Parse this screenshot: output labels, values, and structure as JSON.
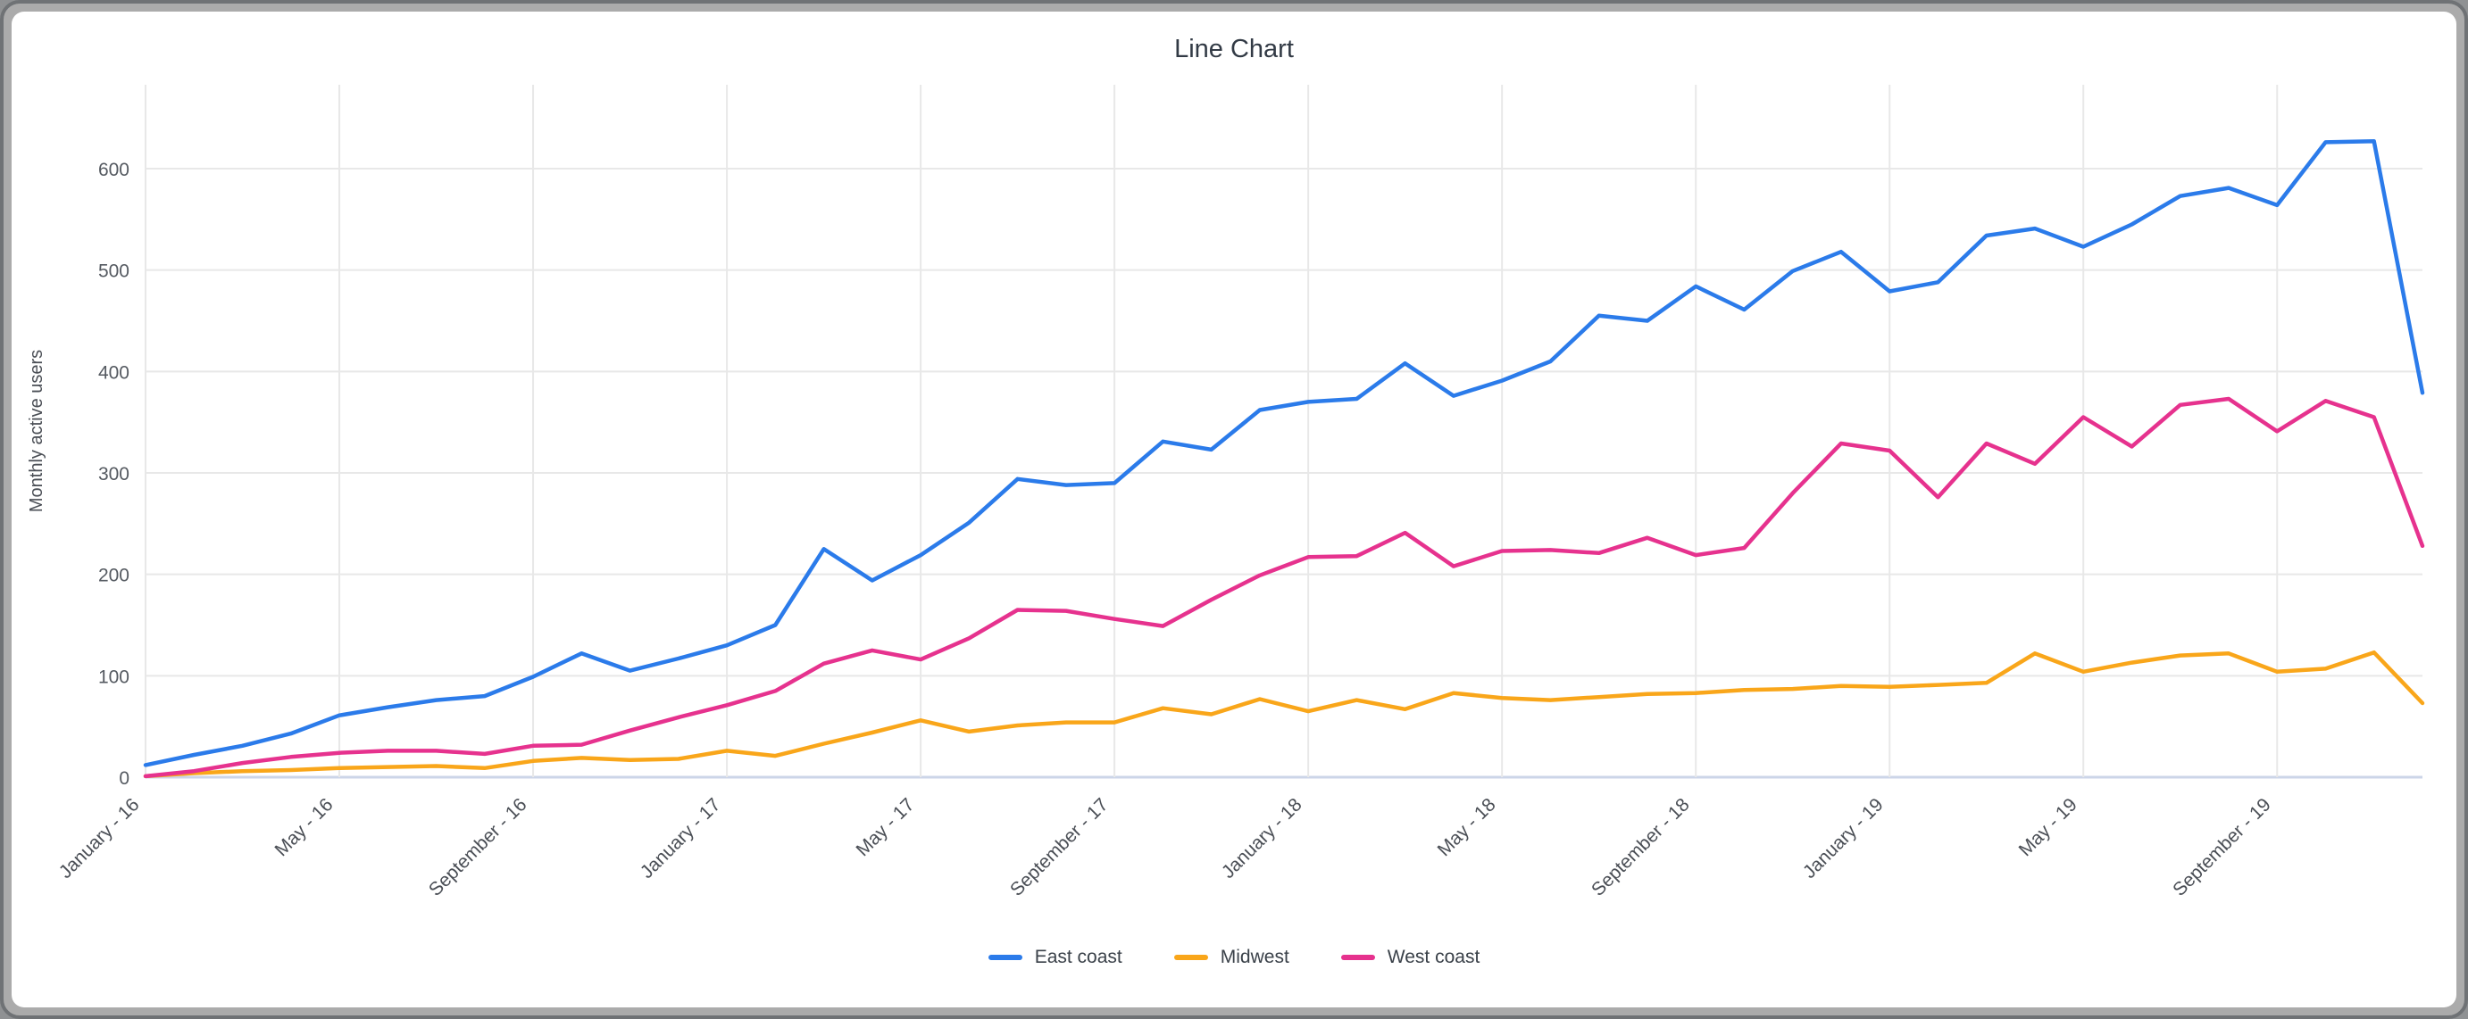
{
  "window": {
    "panel_background": "#ffffff",
    "frame_color": "#ababab"
  },
  "header": {
    "title": "Line Chart"
  },
  "legend": {
    "items": [
      {
        "label": "East coast",
        "color": "#2b7bea"
      },
      {
        "label": "Midwest",
        "color": "#f9a61a"
      },
      {
        "label": "West coast",
        "color": "#e6328e"
      }
    ]
  },
  "chart_data": {
    "type": "line",
    "title": "Line Chart",
    "xlabel": "",
    "ylabel": "Monthly active users",
    "ylim": [
      0,
      600
    ],
    "y_ticks": [
      0,
      100,
      200,
      300,
      400,
      500,
      600
    ],
    "grid": "on",
    "legend_position": "bottom-center",
    "x_tick_labels": [
      "January - 16",
      "May - 16",
      "September - 16",
      "January - 17",
      "May - 17",
      "September - 17",
      "January - 18",
      "May - 18",
      "September - 18",
      "January - 19",
      "May - 19",
      "September - 19"
    ],
    "x_tick_every": 4,
    "months_total": 48,
    "series": [
      {
        "name": "East coast",
        "color": "#2b7bea",
        "values": [
          12,
          22,
          31,
          43,
          61,
          69,
          76,
          80,
          99,
          122,
          105,
          117,
          130,
          150,
          225,
          194,
          219,
          251,
          294,
          288,
          290,
          331,
          323,
          362,
          370,
          373,
          408,
          376,
          391,
          410,
          455,
          450,
          484,
          461,
          499,
          518,
          479,
          488,
          534,
          541,
          523,
          545,
          573,
          581,
          564,
          626,
          627,
          379
        ]
      },
      {
        "name": "Midwest",
        "color": "#f9a61a",
        "values": [
          1,
          4,
          6,
          7,
          9,
          10,
          11,
          9,
          16,
          19,
          17,
          18,
          26,
          21,
          33,
          44,
          56,
          45,
          51,
          54,
          54,
          68,
          62,
          77,
          65,
          76,
          67,
          83,
          78,
          76,
          79,
          82,
          83,
          86,
          87,
          90,
          89,
          91,
          93,
          122,
          104,
          113,
          120,
          122,
          104,
          107,
          123,
          73
        ]
      },
      {
        "name": "West coast",
        "color": "#e6328e",
        "values": [
          1,
          6,
          14,
          20,
          24,
          26,
          26,
          23,
          31,
          32,
          46,
          59,
          71,
          85,
          112,
          125,
          116,
          137,
          165,
          164,
          156,
          149,
          175,
          199,
          217,
          218,
          241,
          208,
          223,
          224,
          221,
          236,
          219,
          226,
          280,
          329,
          322,
          276,
          329,
          309,
          355,
          326,
          367,
          373,
          341,
          371,
          355,
          228
        ]
      }
    ],
    "style": {
      "gridline_color": "#e8e8e8",
      "zero_line_color": "#ccd5e8",
      "tick_text_color": "#555a61",
      "axis_label_color": "#4a4e55",
      "line_width": 4.5
    }
  }
}
